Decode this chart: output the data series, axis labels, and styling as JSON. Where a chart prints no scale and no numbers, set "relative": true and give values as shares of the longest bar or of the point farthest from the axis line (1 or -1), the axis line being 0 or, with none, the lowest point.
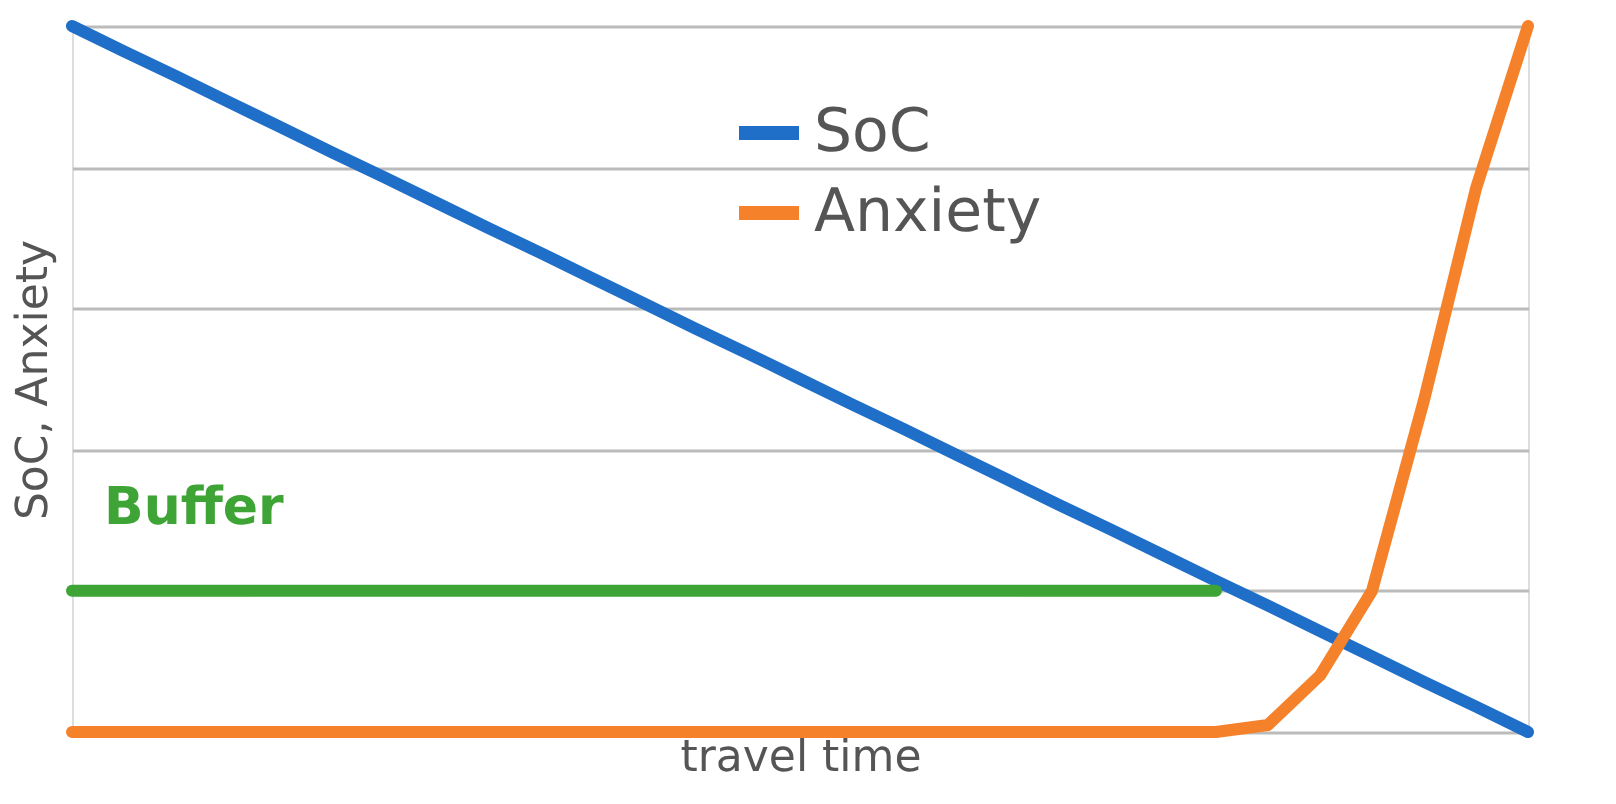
{
  "chart_data": {
    "type": "line",
    "relative": true,
    "xlabel": "travel time",
    "ylabel": "SoC, Anxiety",
    "categories": [
      null,
      null,
      null,
      null,
      null,
      null,
      null,
      null,
      null,
      null,
      null,
      null,
      null,
      null,
      null,
      null,
      null,
      null,
      null,
      null,
      null,
      null,
      null,
      null,
      null,
      null,
      null,
      null,
      null
    ],
    "series": [
      {
        "name": "SoC",
        "color": "#1f6fc8",
        "values": [
          1,
          0.964,
          0.929,
          0.893,
          0.857,
          0.821,
          0.786,
          0.75,
          0.714,
          0.679,
          0.643,
          0.607,
          0.571,
          0.536,
          0.5,
          0.464,
          0.429,
          0.393,
          0.357,
          0.321,
          0.286,
          0.25,
          0.214,
          0.179,
          0.143,
          0.107,
          0.071,
          0.036,
          0
        ]
      },
      {
        "name": "Anxiety",
        "color": "#f5822a",
        "values": [
          0,
          0,
          0,
          0,
          0,
          0,
          0,
          0,
          0,
          0,
          0,
          0,
          0,
          0,
          0,
          0,
          0,
          0,
          0,
          0,
          0,
          0,
          0,
          0.01,
          0.08,
          0.2,
          0.47,
          0.77,
          1
        ]
      },
      {
        "color": "#3da435",
        "values": [
          0.2,
          0.2,
          0.2,
          0.2,
          0.2,
          0.2,
          0.2,
          0.2,
          0.2,
          0.2,
          0.2,
          0.2,
          0.2,
          0.2,
          0.2,
          0.2,
          0.2,
          0.2,
          0.2,
          0.2,
          0.2,
          0.2,
          0.2,
          null,
          null,
          null,
          null,
          null,
          null
        ]
      }
    ],
    "annotations": [
      "Buffer"
    ],
    "grid": "y",
    "legend": "top right",
    "line_style": "solid",
    "marker": "none"
  }
}
